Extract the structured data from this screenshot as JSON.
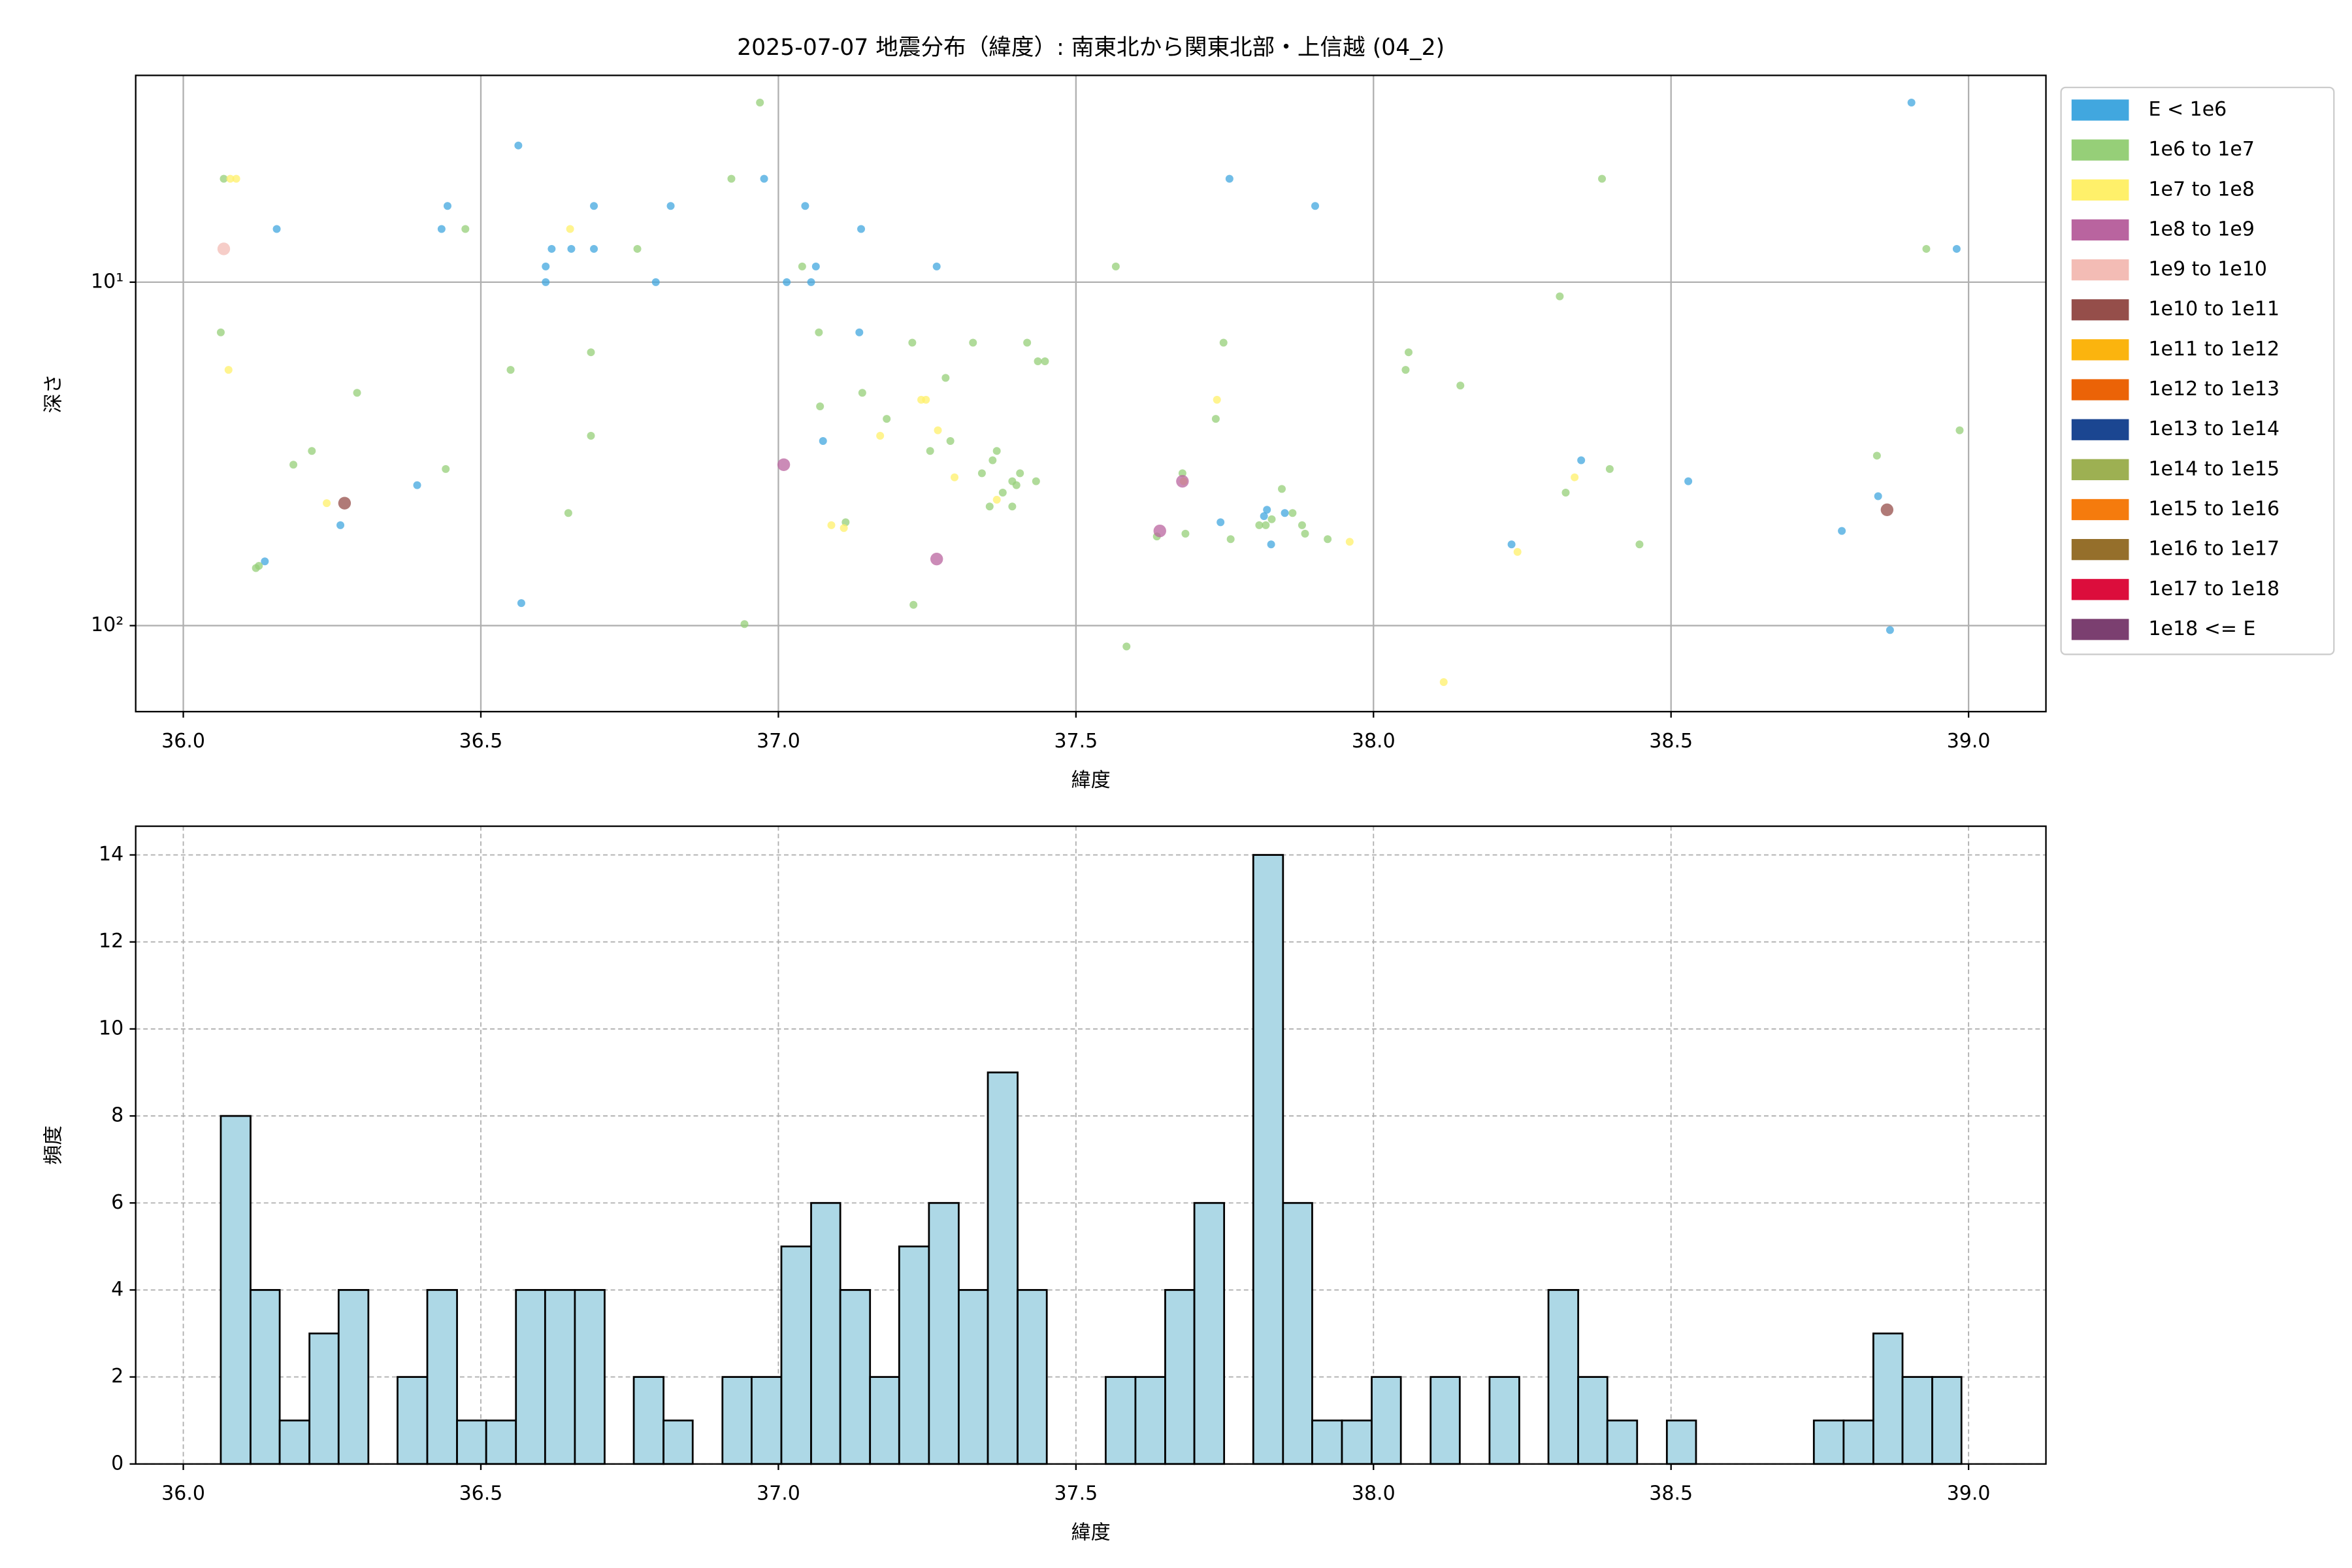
{
  "chart_data": [
    {
      "type": "scatter",
      "title": "2025-07-07 地震分布（緯度）: 南東北から関東北部・上信越 (04_2)",
      "xlabel": "緯度",
      "ylabel": "深さ",
      "xlim": [
        35.92,
        39.13
      ],
      "xticks": [
        {
          "value": 36,
          "label": "36.0"
        },
        {
          "value": 36.5,
          "label": "36.5"
        },
        {
          "value": 37,
          "label": "37.0"
        },
        {
          "value": 37.5,
          "label": "37.5"
        },
        {
          "value": 38,
          "label": "38.0"
        },
        {
          "value": 38.5,
          "label": "38.5"
        },
        {
          "value": 39,
          "label": "39.0"
        }
      ],
      "ylim": [
        2.5,
        178
      ],
      "yticks": [
        {
          "value": 10,
          "label": "10¹"
        },
        {
          "value": 100,
          "label": "10²"
        }
      ],
      "yscale": "log",
      "invert_y": true,
      "grid": true,
      "legend": "outside right",
      "series": [
        {
          "name": "E < 1e6",
          "color": "#41a7df",
          "x": [
            36.563,
            36.157,
            36.444,
            36.434,
            36.609,
            36.619,
            36.609,
            36.652,
            36.69,
            36.69,
            36.794,
            36.819,
            36.976,
            37.014,
            37.045,
            37.055,
            37.063,
            37.139,
            37.266,
            37.136,
            37.075,
            36.393,
            36.264,
            36.137,
            36.568,
            37.758,
            37.902,
            37.743,
            37.821,
            37.851,
            37.816,
            37.828,
            38.232,
            38.349,
            38.529,
            38.787,
            38.848,
            38.868,
            38.904,
            38.98
          ],
          "y": [
            4.0,
            7.0,
            6.0,
            7.0,
            9.0,
            8.0,
            10,
            8.0,
            6.0,
            8.0,
            10,
            6.0,
            5.0,
            10,
            6.0,
            10,
            9.0,
            7.0,
            9.0,
            14,
            29,
            39,
            51,
            65,
            86,
            5.0,
            6.0,
            50,
            46,
            47,
            48,
            58,
            58,
            33,
            38,
            53,
            42,
            103,
            3.0,
            8.0
          ]
        },
        {
          "name": "1e6 to 1e7",
          "color": "#96cf78",
          "x": [
            36.068,
            36.063,
            36.185,
            36.216,
            36.292,
            36.122,
            36.127,
            36.441,
            36.474,
            36.55,
            36.647,
            36.685,
            36.685,
            36.763,
            36.921,
            36.969,
            36.943,
            37.04,
            37.068,
            37.07,
            37.141,
            37.182,
            37.113,
            37.225,
            37.227,
            37.255,
            37.281,
            37.289,
            37.327,
            37.342,
            37.36,
            37.367,
            37.377,
            37.355,
            37.393,
            37.4,
            37.393,
            37.406,
            37.418,
            37.436,
            37.448,
            37.433,
            37.567,
            37.585,
            37.636,
            37.679,
            37.684,
            37.735,
            37.748,
            37.76,
            37.808,
            37.829,
            37.846,
            37.864,
            37.88,
            37.885,
            37.923,
            37.819,
            38.054,
            38.059,
            38.146,
            38.313,
            38.323,
            38.384,
            38.397,
            38.447,
            38.846,
            38.929,
            38.985
          ],
          "y": [
            5.0,
            14,
            34,
            31,
            21,
            68,
            67,
            35,
            7.0,
            18,
            47,
            28,
            16,
            8.0,
            5.0,
            3.0,
            99,
            9.0,
            14,
            23,
            21,
            25,
            50,
            15,
            87,
            31,
            19,
            29,
            15,
            36,
            33,
            31,
            41,
            45,
            38,
            39,
            45,
            36,
            15,
            17,
            17,
            38,
            9.0,
            115,
            55,
            36,
            54,
            25,
            15,
            56,
            51,
            49,
            40,
            47,
            51,
            54,
            56,
            51,
            18,
            16,
            20,
            11,
            41,
            5.0,
            35,
            58,
            32,
            8.0,
            27
          ]
        },
        {
          "name": "1e7 to 1e8",
          "color": "#fff06a",
          "x": [
            36.079,
            36.089,
            36.076,
            36.65,
            36.241,
            37.089,
            37.11,
            37.171,
            37.24,
            37.248,
            37.268,
            37.296,
            37.367,
            37.737,
            37.681,
            37.96,
            38.118,
            38.242,
            38.338
          ],
          "y": [
            5.0,
            5.0,
            18,
            7.0,
            44,
            51,
            52,
            28,
            22,
            22,
            27,
            37,
            43,
            22,
            38,
            57,
            146,
            61,
            37
          ]
        },
        {
          "name": "1e8 to 1e9",
          "color": "#b9649f",
          "x": [
            37.009,
            37.266,
            37.641,
            37.679
          ],
          "y": [
            34,
            64,
            53,
            38
          ]
        },
        {
          "name": "1e9 to 1e10",
          "color": "#f3bcb5",
          "x": [
            36.068
          ],
          "y": [
            8.0
          ]
        },
        {
          "name": "1e10 to 1e11",
          "color": "#954e4a",
          "x": [
            36.271,
            38.863
          ],
          "y": [
            44,
            46
          ]
        },
        {
          "name": "1e11 to 1e12",
          "color": "#fbb40e",
          "x": [],
          "y": []
        },
        {
          "name": "1e12 to 1e13",
          "color": "#eb6307",
          "x": [],
          "y": []
        },
        {
          "name": "1e13 to 1e14",
          "color": "#1b4691",
          "x": [],
          "y": []
        },
        {
          "name": "1e14 to 1e15",
          "color": "#9db052",
          "x": [],
          "y": []
        },
        {
          "name": "1e15 to 1e16",
          "color": "#f57b0d",
          "x": [],
          "y": []
        },
        {
          "name": "1e16 to 1e17",
          "color": "#956f2b",
          "x": [],
          "y": []
        },
        {
          "name": "1e17 to 1e18",
          "color": "#dc0d3c",
          "x": [],
          "y": []
        },
        {
          "name": "1e18 <= E",
          "color": "#7b3f70",
          "x": [],
          "y": []
        }
      ]
    },
    {
      "type": "histogram",
      "xlabel": "緯度",
      "ylabel": "頻度",
      "color": "#add8e6",
      "edgecolor": "#000000",
      "grid": true,
      "xlim": [
        35.92,
        39.13
      ],
      "xticks": [
        {
          "value": 36,
          "label": "36.0"
        },
        {
          "value": 36.5,
          "label": "36.5"
        },
        {
          "value": 37,
          "label": "37.0"
        },
        {
          "value": 37.5,
          "label": "37.5"
        },
        {
          "value": 38,
          "label": "38.0"
        },
        {
          "value": 38.5,
          "label": "38.5"
        },
        {
          "value": 39,
          "label": "39.0"
        }
      ],
      "ylim": [
        0,
        14.66
      ],
      "yticks": [
        0,
        2,
        4,
        6,
        8,
        10,
        12,
        14
      ],
      "bins": [
        36.063,
        36.113,
        36.162,
        36.212,
        36.261,
        36.311,
        36.36,
        36.41,
        36.46,
        36.509,
        36.559,
        36.608,
        36.658,
        36.708,
        36.757,
        36.807,
        36.856,
        36.906,
        36.955,
        37.005,
        37.055,
        37.104,
        37.154,
        37.203,
        37.253,
        37.303,
        37.352,
        37.402,
        37.451,
        37.501,
        37.55,
        37.6,
        37.65,
        37.699,
        37.749,
        37.798,
        37.848,
        37.897,
        37.947,
        37.997,
        38.046,
        38.096,
        38.145,
        38.195,
        38.245,
        38.294,
        38.344,
        38.393,
        38.443,
        38.493,
        38.542,
        38.592,
        38.641,
        38.691,
        38.74,
        38.79,
        38.84,
        38.889,
        38.939,
        38.988
      ],
      "counts": [
        8,
        4,
        1,
        3,
        4,
        0,
        2,
        4,
        1,
        1,
        4,
        4,
        4,
        0,
        2,
        1,
        0,
        2,
        2,
        5,
        6,
        4,
        2,
        5,
        6,
        4,
        9,
        4,
        0,
        0,
        2,
        2,
        4,
        6,
        0,
        14,
        6,
        1,
        1,
        2,
        0,
        2,
        0,
        2,
        0,
        4,
        2,
        1,
        0,
        1,
        0,
        0,
        0,
        0,
        1,
        1,
        3,
        2,
        2
      ]
    }
  ]
}
